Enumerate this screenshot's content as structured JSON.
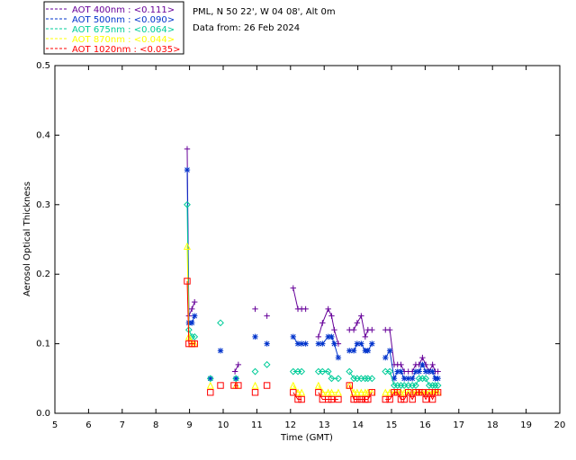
{
  "chart_data": {
    "type": "scatter",
    "title": "",
    "info_lines": [
      "PML, N 50 22', W 04 08', Alt 0m",
      "Data from: 26 Feb 2024"
    ],
    "xlabel": "Time (GMT)",
    "ylabel": "Aerosol Optical Thickness",
    "xlim": [
      5,
      20
    ],
    "ylim": [
      0,
      0.5
    ],
    "xticks": [
      "5",
      "6",
      "7",
      "8",
      "9",
      "10",
      "11",
      "12",
      "13",
      "14",
      "15",
      "16",
      "17",
      "18",
      "19",
      "20"
    ],
    "yticks": [
      "0.0",
      "0.1",
      "0.2",
      "0.3",
      "0.4",
      "0.5"
    ],
    "grid": false,
    "legend_position": "top-left",
    "series": [
      {
        "name": "AOT  400nm : <0.111>",
        "color": "#660099",
        "marker": "plus",
        "points": [
          [
            8.93,
            0.38
          ],
          [
            8.98,
            0.14
          ],
          [
            9.07,
            0.15
          ],
          [
            9.15,
            0.16
          ],
          [
            10.35,
            0.06
          ],
          [
            10.45,
            0.07
          ],
          [
            10.95,
            0.15
          ],
          [
            11.3,
            0.14
          ],
          [
            12.08,
            0.18
          ],
          [
            12.22,
            0.15
          ],
          [
            12.33,
            0.15
          ],
          [
            12.45,
            0.15
          ],
          [
            12.83,
            0.11
          ],
          [
            12.95,
            0.13
          ],
          [
            13.12,
            0.15
          ],
          [
            13.22,
            0.14
          ],
          [
            13.3,
            0.12
          ],
          [
            13.42,
            0.1
          ],
          [
            13.75,
            0.12
          ],
          [
            13.88,
            0.12
          ],
          [
            13.98,
            0.13
          ],
          [
            14.1,
            0.14
          ],
          [
            14.22,
            0.11
          ],
          [
            14.3,
            0.12
          ],
          [
            14.42,
            0.12
          ],
          [
            14.82,
            0.12
          ],
          [
            14.95,
            0.12
          ],
          [
            15.08,
            0.07
          ],
          [
            15.18,
            0.07
          ],
          [
            15.28,
            0.07
          ],
          [
            15.38,
            0.06
          ],
          [
            15.5,
            0.06
          ],
          [
            15.62,
            0.06
          ],
          [
            15.72,
            0.07
          ],
          [
            15.82,
            0.07
          ],
          [
            15.92,
            0.08
          ],
          [
            16.02,
            0.07
          ],
          [
            16.12,
            0.06
          ],
          [
            16.22,
            0.07
          ],
          [
            16.3,
            0.06
          ],
          [
            16.38,
            0.06
          ]
        ]
      },
      {
        "name": "AOT  500nm : <0.090>",
        "color": "#0033cc",
        "marker": "asterisk",
        "points": [
          [
            8.93,
            0.35
          ],
          [
            8.98,
            0.13
          ],
          [
            9.07,
            0.13
          ],
          [
            9.15,
            0.14
          ],
          [
            9.62,
            0.05
          ],
          [
            9.92,
            0.09
          ],
          [
            10.38,
            0.05
          ],
          [
            10.95,
            0.11
          ],
          [
            11.3,
            0.1
          ],
          [
            12.08,
            0.11
          ],
          [
            12.22,
            0.1
          ],
          [
            12.33,
            0.1
          ],
          [
            12.45,
            0.1
          ],
          [
            12.83,
            0.1
          ],
          [
            12.95,
            0.1
          ],
          [
            13.12,
            0.11
          ],
          [
            13.22,
            0.11
          ],
          [
            13.3,
            0.1
          ],
          [
            13.42,
            0.08
          ],
          [
            13.75,
            0.09
          ],
          [
            13.88,
            0.09
          ],
          [
            13.98,
            0.1
          ],
          [
            14.1,
            0.1
          ],
          [
            14.22,
            0.09
          ],
          [
            14.3,
            0.09
          ],
          [
            14.42,
            0.1
          ],
          [
            14.82,
            0.08
          ],
          [
            14.95,
            0.09
          ],
          [
            15.08,
            0.05
          ],
          [
            15.18,
            0.06
          ],
          [
            15.28,
            0.06
          ],
          [
            15.38,
            0.05
          ],
          [
            15.5,
            0.05
          ],
          [
            15.62,
            0.05
          ],
          [
            15.72,
            0.06
          ],
          [
            15.82,
            0.06
          ],
          [
            15.92,
            0.07
          ],
          [
            16.02,
            0.06
          ],
          [
            16.12,
            0.06
          ],
          [
            16.22,
            0.06
          ],
          [
            16.3,
            0.05
          ],
          [
            16.38,
            0.05
          ]
        ]
      },
      {
        "name": "AOT  675nm : <0.064>",
        "color": "#00cc99",
        "marker": "diamond",
        "points": [
          [
            8.93,
            0.3
          ],
          [
            8.98,
            0.12
          ],
          [
            9.07,
            0.11
          ],
          [
            9.15,
            0.11
          ],
          [
            9.62,
            0.05
          ],
          [
            9.92,
            0.13
          ],
          [
            10.38,
            0.05
          ],
          [
            10.95,
            0.06
          ],
          [
            11.3,
            0.07
          ],
          [
            12.08,
            0.06
          ],
          [
            12.22,
            0.06
          ],
          [
            12.33,
            0.06
          ],
          [
            12.83,
            0.06
          ],
          [
            12.95,
            0.06
          ],
          [
            13.12,
            0.06
          ],
          [
            13.22,
            0.05
          ],
          [
            13.42,
            0.05
          ],
          [
            13.75,
            0.06
          ],
          [
            13.88,
            0.05
          ],
          [
            13.98,
            0.05
          ],
          [
            14.1,
            0.05
          ],
          [
            14.22,
            0.05
          ],
          [
            14.3,
            0.05
          ],
          [
            14.42,
            0.05
          ],
          [
            14.82,
            0.06
          ],
          [
            14.95,
            0.06
          ],
          [
            15.08,
            0.04
          ],
          [
            15.18,
            0.04
          ],
          [
            15.28,
            0.04
          ],
          [
            15.38,
            0.04
          ],
          [
            15.5,
            0.04
          ],
          [
            15.62,
            0.04
          ],
          [
            15.72,
            0.04
          ],
          [
            15.82,
            0.05
          ],
          [
            15.92,
            0.05
          ],
          [
            16.02,
            0.05
          ],
          [
            16.12,
            0.04
          ],
          [
            16.22,
            0.04
          ],
          [
            16.3,
            0.04
          ],
          [
            16.38,
            0.04
          ]
        ]
      },
      {
        "name": "AOT  870nm : <0.044>",
        "color": "#ffff00",
        "marker": "triangle",
        "points": [
          [
            8.93,
            0.24
          ],
          [
            8.98,
            0.11
          ],
          [
            9.07,
            0.1
          ],
          [
            9.15,
            0.1
          ],
          [
            9.62,
            0.04
          ],
          [
            10.38,
            0.04
          ],
          [
            10.95,
            0.04
          ],
          [
            12.08,
            0.04
          ],
          [
            12.22,
            0.03
          ],
          [
            12.33,
            0.03
          ],
          [
            12.83,
            0.04
          ],
          [
            12.95,
            0.03
          ],
          [
            13.12,
            0.03
          ],
          [
            13.22,
            0.03
          ],
          [
            13.42,
            0.03
          ],
          [
            13.75,
            0.04
          ],
          [
            13.88,
            0.03
          ],
          [
            13.98,
            0.03
          ],
          [
            14.1,
            0.03
          ],
          [
            14.22,
            0.03
          ],
          [
            14.3,
            0.03
          ],
          [
            14.42,
            0.03
          ],
          [
            14.82,
            0.03
          ],
          [
            14.95,
            0.03
          ],
          [
            15.08,
            0.03
          ],
          [
            15.18,
            0.03
          ],
          [
            15.28,
            0.03
          ],
          [
            15.38,
            0.03
          ],
          [
            15.5,
            0.03
          ],
          [
            15.62,
            0.03
          ],
          [
            15.72,
            0.03
          ],
          [
            15.82,
            0.03
          ],
          [
            15.92,
            0.03
          ],
          [
            16.02,
            0.03
          ],
          [
            16.12,
            0.03
          ],
          [
            16.22,
            0.03
          ],
          [
            16.3,
            0.03
          ],
          [
            16.38,
            0.03
          ]
        ]
      },
      {
        "name": "AOT 1020nm : <0.035>",
        "color": "#ff0000",
        "marker": "square",
        "points": [
          [
            8.93,
            0.19
          ],
          [
            8.98,
            0.1
          ],
          [
            9.07,
            0.1
          ],
          [
            9.15,
            0.1
          ],
          [
            9.62,
            0.03
          ],
          [
            9.92,
            0.04
          ],
          [
            10.32,
            0.04
          ],
          [
            10.45,
            0.04
          ],
          [
            10.95,
            0.03
          ],
          [
            11.3,
            0.04
          ],
          [
            12.08,
            0.03
          ],
          [
            12.22,
            0.02
          ],
          [
            12.33,
            0.02
          ],
          [
            12.83,
            0.03
          ],
          [
            12.95,
            0.02
          ],
          [
            13.12,
            0.02
          ],
          [
            13.22,
            0.02
          ],
          [
            13.42,
            0.02
          ],
          [
            13.75,
            0.04
          ],
          [
            13.88,
            0.02
          ],
          [
            13.98,
            0.02
          ],
          [
            14.1,
            0.02
          ],
          [
            14.22,
            0.02
          ],
          [
            14.3,
            0.02
          ],
          [
            14.42,
            0.03
          ],
          [
            14.82,
            0.02
          ],
          [
            14.95,
            0.02
          ],
          [
            15.08,
            0.03
          ],
          [
            15.18,
            0.03
          ],
          [
            15.28,
            0.02
          ],
          [
            15.38,
            0.02
          ],
          [
            15.5,
            0.03
          ],
          [
            15.62,
            0.02
          ],
          [
            15.72,
            0.03
          ],
          [
            15.82,
            0.03
          ],
          [
            15.92,
            0.03
          ],
          [
            16.02,
            0.02
          ],
          [
            16.12,
            0.03
          ],
          [
            16.22,
            0.02
          ],
          [
            16.3,
            0.03
          ],
          [
            16.38,
            0.03
          ]
        ]
      }
    ]
  }
}
